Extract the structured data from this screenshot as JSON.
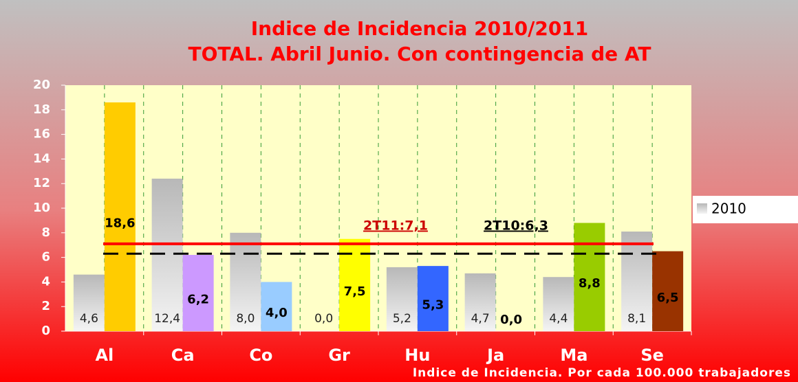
{
  "chart_data": {
    "type": "bar",
    "title": [
      "Indice de Incidencia 2010/2011",
      "TOTAL. Abril Junio. Con contingencia de AT"
    ],
    "xlabel": "Indice de Incidencia. Por cada 100.000 trabajadores",
    "categories": [
      "Al",
      "Ca",
      "Co",
      "Gr",
      "Hu",
      "Ja",
      "Ma",
      "Se"
    ],
    "series": [
      {
        "name": "2010",
        "color": "#c8c8c8",
        "values": [
          4.6,
          12.4,
          8.0,
          0.0,
          5.2,
          4.7,
          4.4,
          8.1
        ],
        "value_labels": [
          "4,6",
          "12,4",
          "8,0",
          "0,0",
          "5,2",
          "4,7",
          "4,4",
          "8,1"
        ]
      },
      {
        "colors": [
          "#ffcc00",
          "#cc99ff",
          "#99ccff",
          "#ffff00",
          "#3366ff",
          "#ffffff",
          "#99cc00",
          "#993300"
        ],
        "values": [
          18.6,
          6.2,
          4.0,
          7.5,
          5.3,
          0.0,
          8.8,
          6.5
        ],
        "value_labels": [
          "18,6",
          "6,2",
          "4,0",
          "7,5",
          "5,3",
          "0,0",
          "8,8",
          "6,5"
        ]
      }
    ],
    "reference_lines": [
      {
        "label": "2T11:7,1",
        "value": 7.1,
        "color": "#ff0000",
        "style": "solid"
      },
      {
        "label": "2T10:6,3",
        "value": 6.3,
        "color": "#000000",
        "style": "dashed"
      }
    ],
    "ylim": [
      0,
      20
    ],
    "yticks": [
      0,
      2,
      4,
      6,
      8,
      10,
      12,
      14,
      16,
      18,
      20
    ],
    "legend": "right"
  }
}
